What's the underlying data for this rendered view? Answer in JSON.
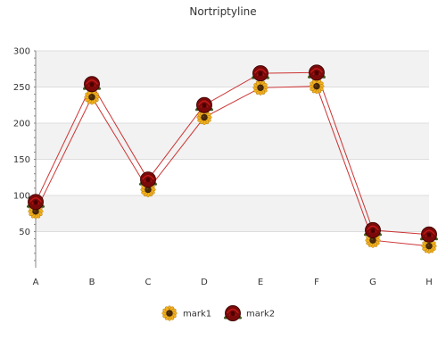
{
  "chart_data": {
    "type": "line",
    "title": "Nortriptyline",
    "xlabel": "",
    "ylabel": "",
    "categories": [
      "A",
      "B",
      "C",
      "D",
      "E",
      "F",
      "G",
      "H"
    ],
    "ylim": [
      0,
      300
    ],
    "yticks": [
      50,
      100,
      150,
      200,
      250,
      300
    ],
    "grid": true,
    "legend_position": "bottom",
    "series": [
      {
        "name": "mark1",
        "marker_icon": "sunflower-icon",
        "line_color": "#cc3333",
        "values": [
          78,
          236,
          108,
          208,
          249,
          251,
          38,
          30
        ]
      },
      {
        "name": "mark2",
        "marker_icon": "rose-icon",
        "line_color": "#cc3333",
        "values": [
          91,
          254,
          122,
          225,
          269,
          270,
          52,
          46
        ]
      }
    ]
  },
  "colors": {
    "band": "#f2f2f2",
    "gridline": "#dddddd",
    "axis": "#888888",
    "line": "#cc3333"
  }
}
